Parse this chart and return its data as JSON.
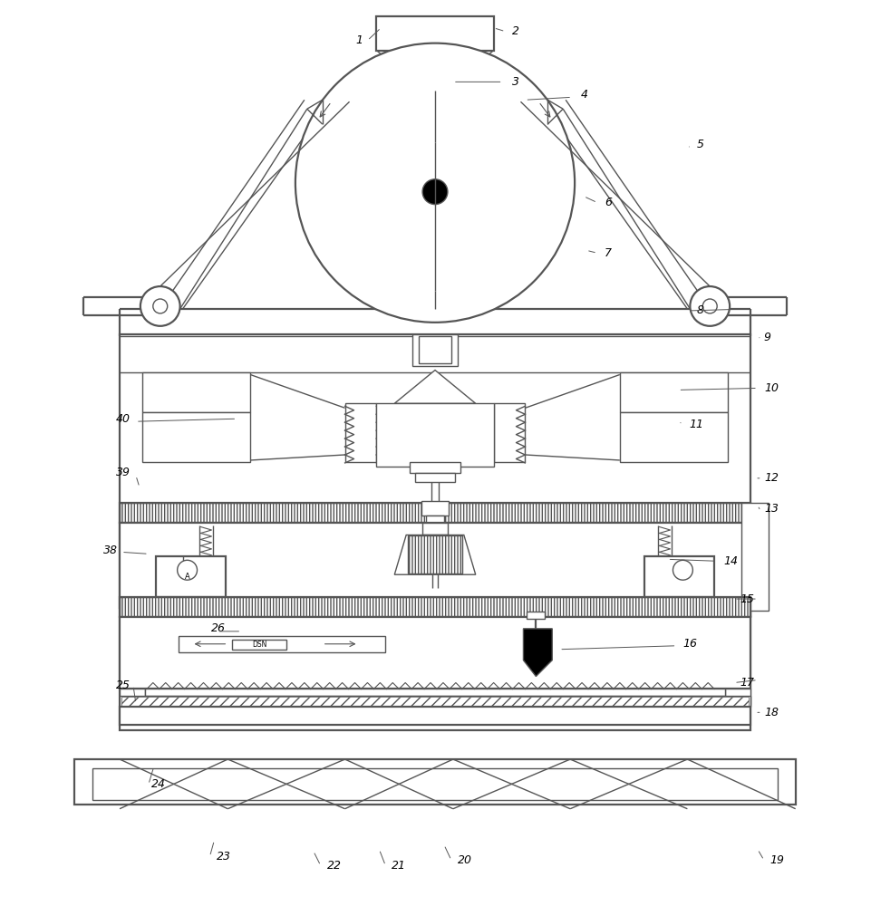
{
  "bg_color": "#ffffff",
  "lc": "#555555",
  "lw": 1.0,
  "lw2": 1.6,
  "figsize": [
    9.61,
    10.0
  ],
  "dpi": 100
}
